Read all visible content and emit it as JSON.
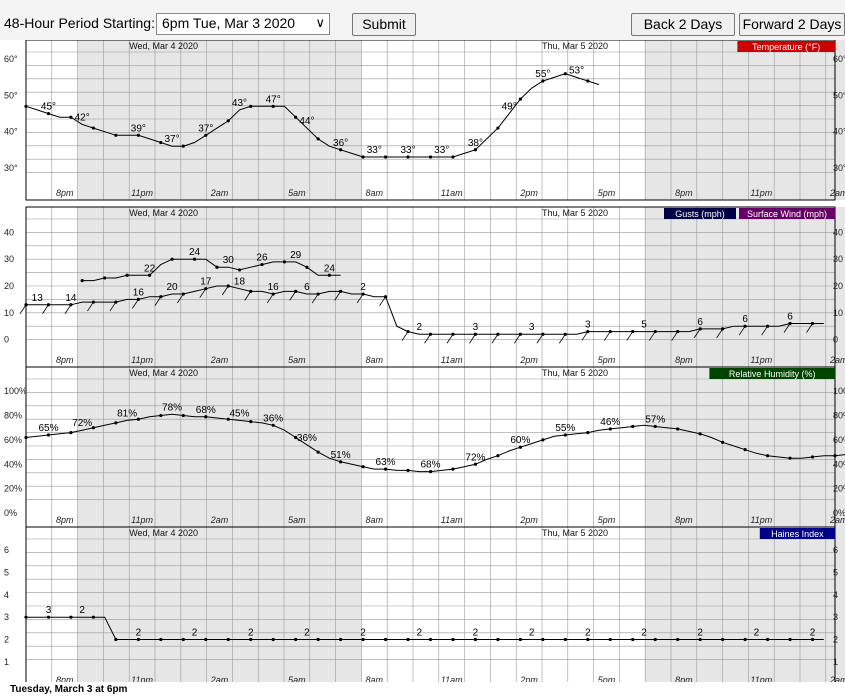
{
  "toolbar": {
    "period_label": "48-Hour Period Starting:",
    "period_value": "6pm Tue, Mar 3 2020",
    "submit": "Submit",
    "back": "Back 2 Days",
    "forward": "Forward 2 Days"
  },
  "footnote": "Tuesday, March 3 at 6pm",
  "colors": {
    "temperature": "#cc0000",
    "gusts": "#000044",
    "wind": "#660066",
    "rh": "#004400",
    "haines": "#000088",
    "grid": "#999999",
    "shade": "#e6e6e6"
  },
  "chart_data": {
    "type": "line",
    "x_tick_labels": [
      "8pm",
      "11pm",
      "2am",
      "5am",
      "8am",
      "11am",
      "2pm",
      "5pm",
      "8pm",
      "11pm",
      "2am",
      "5am",
      "8am",
      "11am",
      "2pm",
      "5pm"
    ],
    "day_labels": [
      "Wed, Mar 4 2020",
      "Thu, Mar 5 2020"
    ],
    "panels": [
      {
        "title": "Temperature (°F)",
        "ylim": [
          25,
          62
        ],
        "y_ticks": [
          "30°",
          "40°",
          "50°",
          "60°"
        ],
        "series": [
          {
            "name": "Temperature (°F)",
            "values": [
              47,
              46,
              45,
              44,
              44,
              42,
              41,
              40,
              39,
              39,
              39,
              38,
              37,
              36,
              36,
              37,
              39,
              41,
              43,
              46,
              47,
              47,
              47,
              47,
              44,
              41,
              38,
              36,
              35,
              34,
              33,
              33,
              33,
              33,
              33,
              33,
              33,
              33,
              33,
              34,
              35,
              38,
              41,
              45,
              49,
              52,
              54,
              55,
              56,
              55,
              54,
              53
            ],
            "labels": [
              [
                2,
                "45°"
              ],
              [
                5,
                "42°"
              ],
              [
                10,
                "39°"
              ],
              [
                13,
                "37°"
              ],
              [
                16,
                "37°"
              ],
              [
                19,
                "43°"
              ],
              [
                22,
                "47°"
              ],
              [
                25,
                "44°"
              ],
              [
                28,
                "36°"
              ],
              [
                31,
                "33°"
              ],
              [
                34,
                "33°"
              ],
              [
                37,
                "33°"
              ],
              [
                40,
                "38°"
              ],
              [
                43,
                "49°"
              ],
              [
                46,
                "55°"
              ],
              [
                49,
                "53°"
              ]
            ]
          }
        ]
      },
      {
        "title": "Surface Wind (mph)",
        "ylim": [
          -5,
          45
        ],
        "y_ticks": [
          "0",
          "10",
          "20",
          "30",
          "40"
        ],
        "series": [
          {
            "name": "Gusts (mph)",
            "start": 5,
            "values": [
              22,
              22,
              23,
              23,
              24,
              24,
              24,
              28,
              30,
              30,
              30,
              30,
              27,
              27,
              26,
              27,
              28,
              29,
              29,
              29,
              27,
              24,
              24,
              24
            ],
            "labels": [
              [
                6,
                "22"
              ],
              [
                10,
                "24"
              ],
              [
                13,
                "30"
              ],
              [
                16,
                "26"
              ],
              [
                19,
                "29"
              ],
              [
                22,
                "24"
              ]
            ]
          },
          {
            "name": "Surface Wind (mph)",
            "values": [
              13,
              13,
              13,
              13,
              13,
              14,
              14,
              14,
              14,
              15,
              15,
              16,
              16,
              17,
              17,
              18,
              19,
              20,
              20,
              19,
              18,
              18,
              17,
              18,
              18,
              17,
              17,
              18,
              18,
              17,
              17,
              16,
              16,
              5,
              3,
              2,
              2,
              2,
              2,
              2,
              2,
              2,
              2,
              2,
              2,
              2,
              2,
              2,
              2,
              2,
              3,
              3,
              3,
              3,
              3,
              3,
              3,
              3,
              3,
              3,
              4,
              4,
              4,
              5,
              5,
              5,
              5,
              5,
              6,
              6,
              6,
              6
            ],
            "labels": [
              [
                1,
                "13"
              ],
              [
                4,
                "14"
              ],
              [
                10,
                "16"
              ],
              [
                13,
                "20"
              ],
              [
                16,
                "17"
              ],
              [
                19,
                "18"
              ],
              [
                22,
                "16"
              ],
              [
                25,
                "6"
              ],
              [
                30,
                "2"
              ],
              [
                35,
                "2"
              ],
              [
                40,
                "3"
              ],
              [
                45,
                "3"
              ],
              [
                50,
                "3"
              ],
              [
                55,
                "5"
              ],
              [
                60,
                "6"
              ],
              [
                64,
                "6"
              ],
              [
                68,
                "6"
              ]
            ]
          }
        ]
      },
      {
        "title": "Relative Humidity (%)",
        "ylim": [
          0,
          110
        ],
        "y_ticks": [
          "0%",
          "20%",
          "40%",
          "60%",
          "80%",
          "100%"
        ],
        "series": [
          {
            "name": "Relative Humidity (%)",
            "values": [
              62,
              63,
              64,
              65,
              66,
              68,
              70,
              72,
              74,
              76,
              77,
              79,
              80,
              81,
              80,
              79,
              79,
              78,
              77,
              76,
              75,
              74,
              72,
              68,
              62,
              56,
              50,
              45,
              42,
              40,
              38,
              36,
              36,
              35,
              35,
              34,
              34,
              35,
              36,
              38,
              40,
              44,
              47,
              51,
              54,
              57,
              60,
              63,
              64,
              65,
              66,
              68,
              69,
              70,
              71,
              72,
              71,
              70,
              69,
              67,
              65,
              62,
              58,
              55,
              52,
              49,
              47,
              46,
              45,
              45,
              46,
              47,
              47,
              48,
              57
            ],
            "labels": [
              [
                2,
                "65%"
              ],
              [
                5,
                "72%"
              ],
              [
                9,
                "81%"
              ],
              [
                13,
                "78%"
              ],
              [
                16,
                "68%"
              ],
              [
                19,
                "45%"
              ],
              [
                22,
                "36%"
              ],
              [
                25,
                "36%"
              ],
              [
                28,
                "51%"
              ],
              [
                32,
                "63%"
              ],
              [
                36,
                "68%"
              ],
              [
                40,
                "72%"
              ],
              [
                44,
                "60%"
              ],
              [
                48,
                "55%"
              ],
              [
                52,
                "46%"
              ],
              [
                56,
                "57%"
              ]
            ]
          }
        ]
      },
      {
        "title": "Haines Index",
        "ylim": [
          0.5,
          6.5
        ],
        "y_ticks": [
          "1",
          "2",
          "3",
          "4",
          "5",
          "6"
        ],
        "series": [
          {
            "name": "Haines Index",
            "values": [
              3,
              3,
              3,
              3,
              3,
              3,
              3,
              3,
              2,
              2,
              2,
              2,
              2,
              2,
              2,
              2,
              2,
              2,
              2,
              2,
              2,
              2,
              2,
              2,
              2,
              2,
              2,
              2,
              2,
              2,
              2,
              2,
              2,
              2,
              2,
              2,
              2,
              2,
              2,
              2,
              2,
              2,
              2,
              2,
              2,
              2,
              2,
              2,
              2,
              2,
              2,
              2,
              2,
              2,
              2,
              2,
              2,
              2,
              2,
              2,
              2,
              2,
              2,
              2,
              2,
              2,
              2,
              2,
              2,
              2,
              2,
              2
            ],
            "labels": [
              [
                2,
                "3"
              ],
              [
                5,
                "2"
              ],
              [
                10,
                "2"
              ],
              [
                15,
                "2"
              ],
              [
                20,
                "2"
              ],
              [
                25,
                "2"
              ],
              [
                30,
                "2"
              ],
              [
                35,
                "2"
              ],
              [
                40,
                "2"
              ],
              [
                45,
                "2"
              ],
              [
                50,
                "2"
              ],
              [
                55,
                "2"
              ],
              [
                60,
                "2"
              ],
              [
                65,
                "2"
              ],
              [
                70,
                "2"
              ]
            ]
          }
        ]
      }
    ]
  }
}
